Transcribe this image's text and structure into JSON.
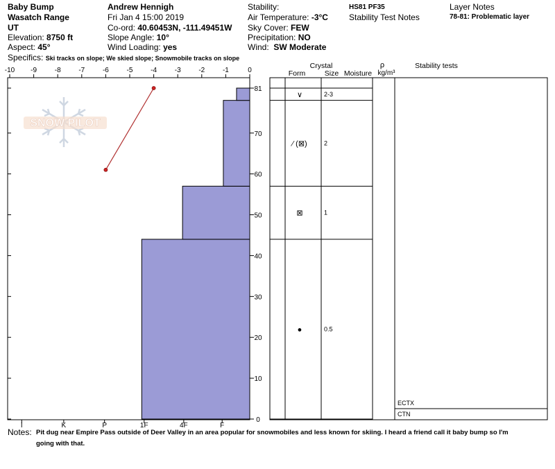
{
  "header": {
    "col1": {
      "location": "Baby Bump",
      "range": "Wasatch Range",
      "state": "UT",
      "elevation_label": "Elevation:",
      "elevation": "8750 ft",
      "aspect_label": "Aspect:",
      "aspect": "45°",
      "specifics_label": "Specifics:",
      "specifics": "Ski tracks on slope; We skied slope; Snowmobile tracks on slope"
    },
    "col2": {
      "observer": "Andrew Hennigh",
      "datetime": "Fri Jan 4 15:00 2019",
      "coord_label": "Co-ord:",
      "coord": "40.60453N, -111.49451W",
      "slope_label": "Slope Angle:",
      "slope": "10°",
      "wind_loading_label": "Wind Loading:",
      "wind_loading": "yes"
    },
    "col3": {
      "stability_label": "Stability:",
      "air_temp_label": "Air Temperature:",
      "air_temp": "-3°C",
      "sky_label": "Sky Cover:",
      "sky": "FEW",
      "precip_label": "Precipitation:",
      "precip": "NO",
      "wind_label": "Wind:",
      "wind": "SW Moderate"
    },
    "col4": {
      "hs_pf": "HS81 PF35",
      "stability_notes_label": "Stability Test Notes"
    },
    "col5": {
      "layer_notes_label": "Layer Notes",
      "layer_note_1": "78-81: Problematic layer"
    }
  },
  "columns": {
    "crystal": "Crystal",
    "form": "Form",
    "size": "Size",
    "moisture": "Moisture",
    "rho": "ρ",
    "density_unit": "kg/m³",
    "stability_tests": "Stability tests"
  },
  "logo": {
    "text": "SNOW PILOT"
  },
  "chart_data": {
    "type": "area",
    "temperature_axis": {
      "label": "",
      "range": [
        -10,
        0
      ],
      "ticks": [
        "-10",
        "-9",
        "-8",
        "-7",
        "-6",
        "-5",
        "-4",
        "-3",
        "-2",
        "-1",
        "0"
      ],
      "values": [
        -10,
        -9,
        -8,
        -7,
        -6,
        -5,
        -4,
        -3,
        -2,
        -1,
        0
      ]
    },
    "hardness_axis": {
      "categories": [
        "I",
        "K",
        "P",
        "1F",
        "4F",
        "F"
      ],
      "positions": [
        -9.5,
        -7.75,
        -6.05,
        -4.4,
        -2.75,
        -1.15
      ]
    },
    "depth_axis": {
      "range": [
        0,
        81
      ],
      "ticks": [
        "0",
        "10",
        "20",
        "30",
        "40",
        "50",
        "60",
        "70",
        "81"
      ],
      "values": [
        0,
        10,
        20,
        30,
        40,
        50,
        60,
        70,
        81
      ]
    },
    "hardness_profile": [
      {
        "bottom": 0,
        "top": 44,
        "temp_left": -4.5
      },
      {
        "bottom": 44,
        "top": 57,
        "temp_left": -2.8
      },
      {
        "bottom": 57,
        "top": 78,
        "temp_left": -1.1
      },
      {
        "bottom": 78,
        "top": 81,
        "temp_left": -0.55
      }
    ],
    "temperature_profile": [
      {
        "temp": -4,
        "depth": 81
      },
      {
        "temp": -6,
        "depth": 61
      }
    ],
    "layers": [
      {
        "top": 81,
        "bottom": 78,
        "form": "∨",
        "size": "2-3"
      },
      {
        "top": 78,
        "bottom": 57,
        "form": "⁄ (⊠)",
        "size": "2"
      },
      {
        "top": 57,
        "bottom": 44,
        "form": "⊠",
        "size": "1"
      },
      {
        "top": 44,
        "bottom": 0,
        "form": "●",
        "size": "0.5"
      }
    ],
    "stability_tests": [
      "ECTX",
      "CTN"
    ],
    "colors": {
      "fill": "#9b9bd6",
      "temp_line": "#b03030",
      "temp_point": "#cc2222"
    }
  },
  "notes": {
    "label": "Notes:",
    "line1": "Pit dug near Empire Pass outside of Deer Valley in an area popular for snowmobiles and less known for skiing. I heard a friend call it baby bump so I'm",
    "line2": "going with that."
  }
}
